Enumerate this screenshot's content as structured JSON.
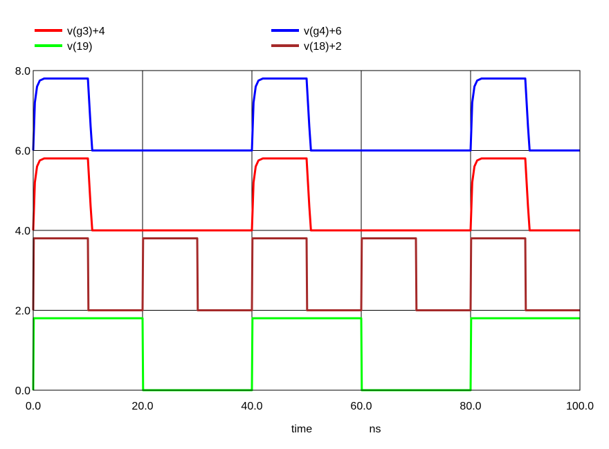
{
  "chart_data": {
    "type": "line",
    "xlabel": "time",
    "xunit": "ns",
    "xlim": [
      0,
      100
    ],
    "ylim": [
      0,
      8
    ],
    "grid": true,
    "legend_placement": "top",
    "x_ticks": [
      "0.0",
      "20.0",
      "40.0",
      "60.0",
      "80.0",
      "100.0"
    ],
    "y_ticks": [
      "0.0",
      "2.0",
      "4.0",
      "6.0",
      "8.0"
    ],
    "series": [
      {
        "name": "v(g3)+4",
        "color": "#ff0000",
        "x": [
          0,
          0.3,
          0.7,
          1.2,
          2.0,
          10.0,
          10.5,
          10.8,
          40.0,
          40.3,
          40.7,
          41.2,
          42.0,
          50.0,
          50.5,
          50.8,
          80.0,
          80.3,
          80.7,
          81.2,
          82.0,
          90.0,
          90.5,
          90.8,
          100.0
        ],
        "y": [
          4.0,
          5.2,
          5.6,
          5.75,
          5.8,
          5.8,
          4.6,
          4.0,
          4.0,
          5.2,
          5.6,
          5.75,
          5.8,
          5.8,
          4.6,
          4.0,
          4.0,
          5.2,
          5.6,
          5.75,
          5.8,
          5.8,
          4.6,
          4.0,
          4.0
        ]
      },
      {
        "name": "v(g4)+6",
        "color": "#0000ff",
        "x": [
          0,
          0.3,
          0.7,
          1.2,
          2.0,
          10.0,
          10.5,
          10.8,
          40.0,
          40.3,
          40.7,
          41.2,
          42.0,
          50.0,
          50.5,
          50.8,
          80.0,
          80.3,
          80.7,
          81.2,
          82.0,
          90.0,
          90.5,
          90.8,
          100.0
        ],
        "y": [
          6.0,
          7.2,
          7.6,
          7.75,
          7.8,
          7.8,
          6.6,
          6.0,
          6.0,
          7.2,
          7.6,
          7.75,
          7.8,
          7.8,
          6.6,
          6.0,
          6.0,
          7.2,
          7.6,
          7.75,
          7.8,
          7.8,
          6.6,
          6.0,
          6.0
        ]
      },
      {
        "name": "v(19)",
        "color": "#00ff00",
        "x": [
          0,
          0.1,
          20.0,
          20.1,
          40.0,
          40.1,
          60.0,
          60.1,
          80.0,
          80.1,
          100.0
        ],
        "y": [
          0.0,
          1.8,
          1.8,
          0.0,
          0.0,
          1.8,
          1.8,
          0.0,
          0.0,
          1.8,
          1.8
        ]
      },
      {
        "name": "v(18)+2",
        "color": "#a52a2a",
        "x": [
          0,
          0.1,
          10.0,
          10.1,
          20.0,
          20.1,
          30.0,
          30.1,
          40.0,
          40.1,
          50.0,
          50.1,
          60.0,
          60.1,
          70.0,
          70.1,
          80.0,
          80.1,
          90.0,
          90.1,
          100.0
        ],
        "y": [
          2.0,
          3.8,
          3.8,
          2.0,
          2.0,
          3.8,
          3.8,
          2.0,
          2.0,
          3.8,
          3.8,
          2.0,
          2.0,
          3.8,
          3.8,
          2.0,
          2.0,
          3.8,
          3.8,
          2.0,
          2.0
        ]
      }
    ]
  }
}
